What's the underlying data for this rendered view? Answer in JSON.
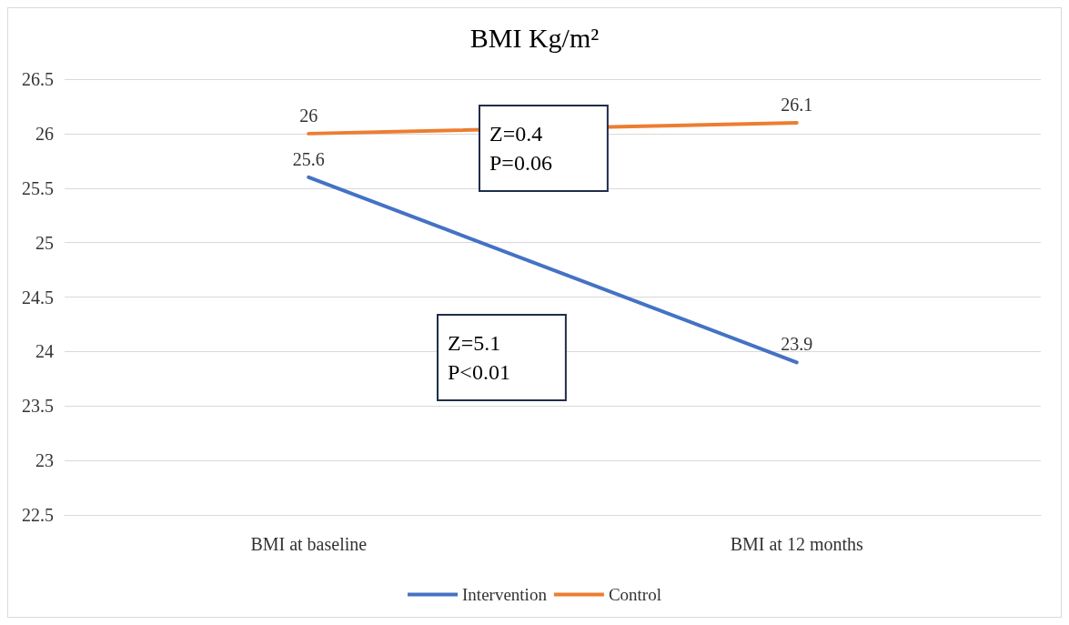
{
  "chart_data": {
    "type": "line",
    "title": "BMI Kg/m²",
    "categories": [
      "BMI at baseline",
      "BMI at 12 months"
    ],
    "series": [
      {
        "name": "Intervention",
        "color": "#4472c4",
        "values": [
          25.6,
          23.9
        ]
      },
      {
        "name": "Control",
        "color": "#ed7d31",
        "values": [
          26,
          26.1
        ]
      }
    ],
    "ylim": [
      22.5,
      26.5
    ],
    "yticks": [
      22.5,
      23,
      23.5,
      24,
      24.5,
      25,
      25.5,
      26,
      26.5
    ],
    "grid": "y",
    "legend": "bottom",
    "marker": "none",
    "line_style": "solid",
    "data_labels": true,
    "annotations": [
      "Z=0.4\nP=0.06",
      "Z=5.1\nP<0.01"
    ]
  }
}
